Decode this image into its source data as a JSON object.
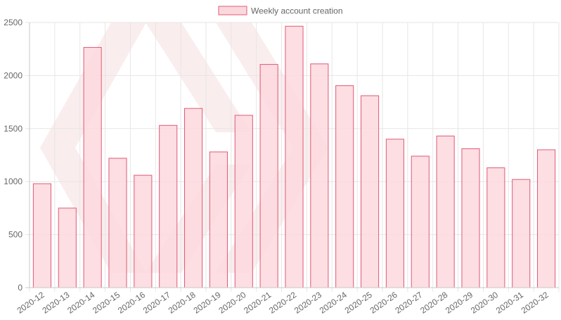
{
  "chart_data": {
    "type": "bar",
    "title": "",
    "xlabel": "",
    "ylabel": "",
    "ylim": [
      0,
      2500
    ],
    "yticks": [
      0,
      500,
      1000,
      1500,
      2000,
      2500
    ],
    "grid": true,
    "legend_position": "top-center",
    "categories": [
      "2020-12",
      "2020-13",
      "2020-14",
      "2020-15",
      "2020-16",
      "2020-17",
      "2020-18",
      "2020-19",
      "2020-20",
      "2020-21",
      "2020-22",
      "2020-23",
      "2020-24",
      "2020-25",
      "2020-26",
      "2020-27",
      "2020-28",
      "2020-29",
      "2020-30",
      "2020-31",
      "2020-32"
    ],
    "series": [
      {
        "name": "Weekly account creation",
        "values": [
          980,
          750,
          2265,
          1220,
          1060,
          1530,
          1690,
          1280,
          1625,
          2105,
          2465,
          2110,
          1905,
          1810,
          1400,
          1240,
          1430,
          1310,
          1130,
          1020,
          1300
        ],
        "color": "#e05a74",
        "fill": "#fbd8de"
      }
    ],
    "colors": {
      "grid": "#e6e6e6",
      "axis": "#c8c8c8",
      "text": "#666666",
      "watermark": "#f4d6d9"
    }
  }
}
